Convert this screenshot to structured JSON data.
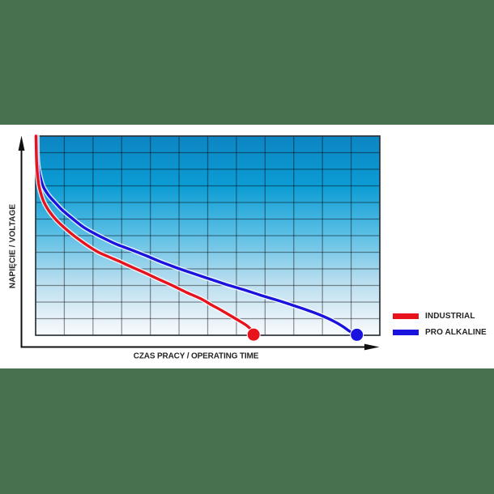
{
  "image": {
    "background_color": "#ffffff",
    "band_color": "#47714f"
  },
  "chart_data": {
    "type": "line",
    "title": "",
    "xlabel": "CZAS PRACY / OPERATING TIME",
    "ylabel": "NAPIĘCIE / VOLTAGE",
    "xlim": [
      0,
      12
    ],
    "ylim": [
      0,
      12
    ],
    "grid": {
      "columns": 12,
      "rows": 12,
      "on": true,
      "line_color": "rgba(0,0,0,0.42)"
    },
    "axis_tick_labels": "none",
    "legend_position": "right-bottom",
    "plot_background_gradient": [
      {
        "offset": 0.0,
        "color": "#0d85c3"
      },
      {
        "offset": 0.25,
        "color": "#0c9cd3"
      },
      {
        "offset": 0.48,
        "color": "#56bde4"
      },
      {
        "offset": 0.72,
        "color": "#b5dcee"
      },
      {
        "offset": 0.95,
        "color": "#eef5fa"
      },
      {
        "offset": 1.0,
        "color": "#f6fafd"
      }
    ],
    "series": [
      {
        "name": "INDUSTRIAL",
        "color": "#e8121c",
        "end_marker": {
          "x": 7.6,
          "y": 0.04,
          "radius": 8
        },
        "points": [
          [
            0.01,
            12.0
          ],
          [
            0.03,
            10.54
          ],
          [
            0.06,
            9.8
          ],
          [
            0.11,
            9.07
          ],
          [
            0.2,
            8.44
          ],
          [
            0.31,
            7.95
          ],
          [
            0.48,
            7.46
          ],
          [
            0.68,
            7.02
          ],
          [
            0.93,
            6.59
          ],
          [
            1.21,
            6.17
          ],
          [
            1.52,
            5.76
          ],
          [
            1.84,
            5.37
          ],
          [
            2.17,
            5.02
          ],
          [
            2.54,
            4.73
          ],
          [
            2.91,
            4.46
          ],
          [
            3.3,
            4.15
          ],
          [
            3.76,
            3.8
          ],
          [
            4.24,
            3.41
          ],
          [
            4.74,
            3.02
          ],
          [
            5.25,
            2.59
          ],
          [
            5.76,
            2.2
          ],
          [
            6.16,
            1.8
          ],
          [
            6.52,
            1.46
          ],
          [
            6.97,
            1.0
          ],
          [
            7.34,
            0.61
          ],
          [
            7.51,
            0.34
          ]
        ]
      },
      {
        "name": "PRO ALKALINE",
        "color": "#1a13dd",
        "end_marker": {
          "x": 11.2,
          "y": 0.03,
          "radius": 8
        },
        "points": [
          [
            0.05,
            12.0
          ],
          [
            0.06,
            10.83
          ],
          [
            0.1,
            10.05
          ],
          [
            0.18,
            9.41
          ],
          [
            0.27,
            8.93
          ],
          [
            0.45,
            8.44
          ],
          [
            0.65,
            8.05
          ],
          [
            0.93,
            7.54
          ],
          [
            1.27,
            7.05
          ],
          [
            1.67,
            6.51
          ],
          [
            2.06,
            6.12
          ],
          [
            2.43,
            5.8
          ],
          [
            2.85,
            5.46
          ],
          [
            3.33,
            5.15
          ],
          [
            3.87,
            4.78
          ],
          [
            4.38,
            4.41
          ],
          [
            4.91,
            4.07
          ],
          [
            5.48,
            3.73
          ],
          [
            6.07,
            3.39
          ],
          [
            6.66,
            3.05
          ],
          [
            7.28,
            2.73
          ],
          [
            7.85,
            2.41
          ],
          [
            8.44,
            2.1
          ],
          [
            8.98,
            1.8
          ],
          [
            9.51,
            1.49
          ],
          [
            9.99,
            1.17
          ],
          [
            10.39,
            0.85
          ],
          [
            10.7,
            0.54
          ],
          [
            10.95,
            0.24
          ]
        ]
      }
    ]
  },
  "legend": {
    "items": [
      {
        "label": "INDUSTRIAL",
        "color": "#e8121c"
      },
      {
        "label": "PRO ALKALINE",
        "color": "#1a13dd"
      }
    ]
  }
}
